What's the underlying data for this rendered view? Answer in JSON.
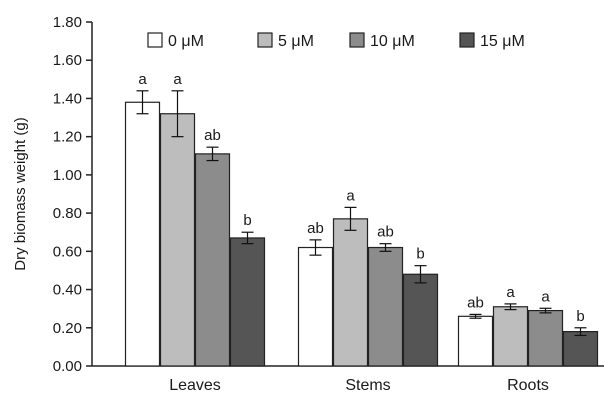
{
  "chart_data": {
    "type": "bar",
    "title": "",
    "xlabel": "",
    "ylabel": "Dry biomass weight (g)",
    "ylim": [
      0,
      1.8
    ],
    "yticks": [
      "0.00",
      "0.20",
      "0.40",
      "0.60",
      "0.80",
      "1.00",
      "1.20",
      "1.40",
      "1.60",
      "1.80"
    ],
    "grid": false,
    "legend_position": "top",
    "categories": [
      "Leaves",
      "Stems",
      "Roots"
    ],
    "series": [
      {
        "name": "0 μM",
        "color": "#ffffff",
        "values": [
          1.38,
          0.62,
          0.26
        ],
        "errors": [
          0.06,
          0.04,
          0.01
        ],
        "labels": [
          "a",
          "ab",
          "ab"
        ]
      },
      {
        "name": "5 μM",
        "color": "#bdbdbd",
        "values": [
          1.32,
          0.77,
          0.31
        ],
        "errors": [
          0.12,
          0.06,
          0.015
        ],
        "labels": [
          "a",
          "a",
          "a"
        ]
      },
      {
        "name": "10 μM",
        "color": "#8c8c8c",
        "values": [
          1.11,
          0.62,
          0.29
        ],
        "errors": [
          0.035,
          0.02,
          0.012
        ],
        "labels": [
          "ab",
          "ab",
          "a"
        ]
      },
      {
        "name": "15 μM",
        "color": "#555555",
        "values": [
          0.67,
          0.48,
          0.18
        ],
        "errors": [
          0.03,
          0.045,
          0.02
        ],
        "labels": [
          "b",
          "b",
          "b"
        ]
      }
    ]
  }
}
